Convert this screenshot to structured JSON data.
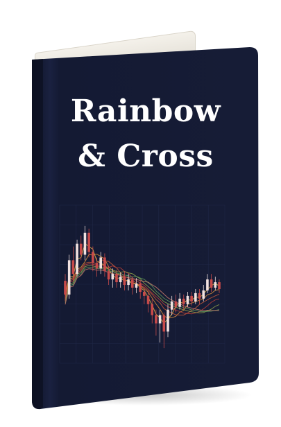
{
  "book": {
    "title_line1": "Rainbow",
    "title_line2": "& Cross",
    "cover_color": "#141a33",
    "spine_color": "#0e1327",
    "title_color": "#ffffff"
  },
  "candles": [
    {
      "o": 0.55,
      "c": 0.45,
      "h": 0.6,
      "l": 0.4
    },
    {
      "o": 0.45,
      "c": 0.7,
      "h": 0.74,
      "l": 0.42
    },
    {
      "o": 0.7,
      "c": 0.6,
      "h": 0.8,
      "l": 0.55
    },
    {
      "o": 0.6,
      "c": 0.82,
      "h": 0.85,
      "l": 0.58
    },
    {
      "o": 0.82,
      "c": 0.74,
      "h": 0.88,
      "l": 0.7
    },
    {
      "o": 0.74,
      "c": 0.9,
      "h": 0.95,
      "l": 0.7
    },
    {
      "o": 0.9,
      "c": 0.76,
      "h": 0.93,
      "l": 0.72
    },
    {
      "o": 0.76,
      "c": 0.68,
      "h": 0.8,
      "l": 0.62
    },
    {
      "o": 0.68,
      "c": 0.64,
      "h": 0.72,
      "l": 0.58
    },
    {
      "o": 0.64,
      "c": 0.72,
      "h": 0.76,
      "l": 0.6
    },
    {
      "o": 0.72,
      "c": 0.62,
      "h": 0.75,
      "l": 0.58
    },
    {
      "o": 0.62,
      "c": 0.56,
      "h": 0.66,
      "l": 0.52
    },
    {
      "o": 0.56,
      "c": 0.6,
      "h": 0.64,
      "l": 0.5
    },
    {
      "o": 0.6,
      "c": 0.54,
      "h": 0.63,
      "l": 0.5
    },
    {
      "o": 0.54,
      "c": 0.58,
      "h": 0.61,
      "l": 0.5
    },
    {
      "o": 0.58,
      "c": 0.52,
      "h": 0.62,
      "l": 0.48
    },
    {
      "o": 0.52,
      "c": 0.56,
      "h": 0.6,
      "l": 0.48
    },
    {
      "o": 0.56,
      "c": 0.5,
      "h": 0.58,
      "l": 0.45
    },
    {
      "o": 0.5,
      "c": 0.53,
      "h": 0.57,
      "l": 0.46
    },
    {
      "o": 0.53,
      "c": 0.47,
      "h": 0.55,
      "l": 0.42
    },
    {
      "o": 0.47,
      "c": 0.44,
      "h": 0.5,
      "l": 0.38
    },
    {
      "o": 0.44,
      "c": 0.38,
      "h": 0.47,
      "l": 0.32
    },
    {
      "o": 0.38,
      "c": 0.3,
      "h": 0.42,
      "l": 0.24
    },
    {
      "o": 0.3,
      "c": 0.24,
      "h": 0.34,
      "l": 0.15
    },
    {
      "o": 0.24,
      "c": 0.3,
      "h": 0.34,
      "l": 0.1
    },
    {
      "o": 0.3,
      "c": 0.18,
      "h": 0.32,
      "l": 0.06
    },
    {
      "o": 0.18,
      "c": 0.34,
      "h": 0.38,
      "l": 0.14
    },
    {
      "o": 0.34,
      "c": 0.4,
      "h": 0.44,
      "l": 0.3
    },
    {
      "o": 0.4,
      "c": 0.36,
      "h": 0.45,
      "l": 0.32
    },
    {
      "o": 0.36,
      "c": 0.42,
      "h": 0.46,
      "l": 0.34
    },
    {
      "o": 0.42,
      "c": 0.38,
      "h": 0.45,
      "l": 0.34
    },
    {
      "o": 0.38,
      "c": 0.44,
      "h": 0.47,
      "l": 0.36
    },
    {
      "o": 0.44,
      "c": 0.4,
      "h": 0.47,
      "l": 0.37
    },
    {
      "o": 0.4,
      "c": 0.46,
      "h": 0.49,
      "l": 0.38
    },
    {
      "o": 0.46,
      "c": 0.42,
      "h": 0.49,
      "l": 0.38
    },
    {
      "o": 0.42,
      "c": 0.48,
      "h": 0.52,
      "l": 0.4
    },
    {
      "o": 0.48,
      "c": 0.56,
      "h": 0.6,
      "l": 0.46
    },
    {
      "o": 0.56,
      "c": 0.5,
      "h": 0.6,
      "l": 0.47
    },
    {
      "o": 0.5,
      "c": 0.54,
      "h": 0.58,
      "l": 0.48
    },
    {
      "o": 0.54,
      "c": 0.49,
      "h": 0.56,
      "l": 0.46
    }
  ],
  "ma_colors": [
    "#e3b84a",
    "#d98c3a",
    "#c95a3a",
    "#b8403a",
    "#8fa04a",
    "#5f9a5a",
    "#c77b6b"
  ],
  "colors": {
    "up": "#f2e2e0",
    "down": "#c84a4a",
    "grid": "#1f2747"
  }
}
